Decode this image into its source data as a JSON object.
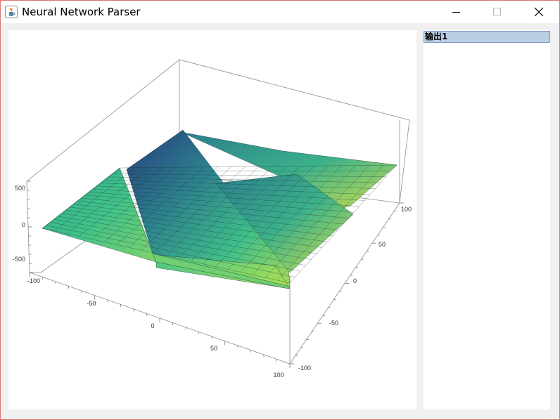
{
  "window": {
    "title": "Neural Network Parser"
  },
  "titlebar_buttons": {
    "minimize_icon": "minimize-icon",
    "maximize_icon": "maximize-icon",
    "close_icon": "close-icon"
  },
  "output_list": {
    "items": [
      {
        "label": "输出1"
      }
    ]
  },
  "chart_data": {
    "type": "3d-surface",
    "z_ticks": [
      "500",
      "0",
      "-500"
    ],
    "x_ticks": [
      "-100",
      "-50",
      "0",
      "50",
      "100"
    ],
    "y_ticks": [
      "-100",
      "-50",
      "0",
      "50",
      "100"
    ],
    "xlim": [
      -100,
      100
    ],
    "ylim": [
      -100,
      100
    ],
    "zlim": [
      -650,
      650
    ],
    "colormap": "viridis",
    "colors": {
      "low": "#2e6b8e",
      "mid": "#3fbe8a",
      "high": "#d7e449",
      "deep": "#263b7a"
    },
    "box": true,
    "mesh": true
  }
}
